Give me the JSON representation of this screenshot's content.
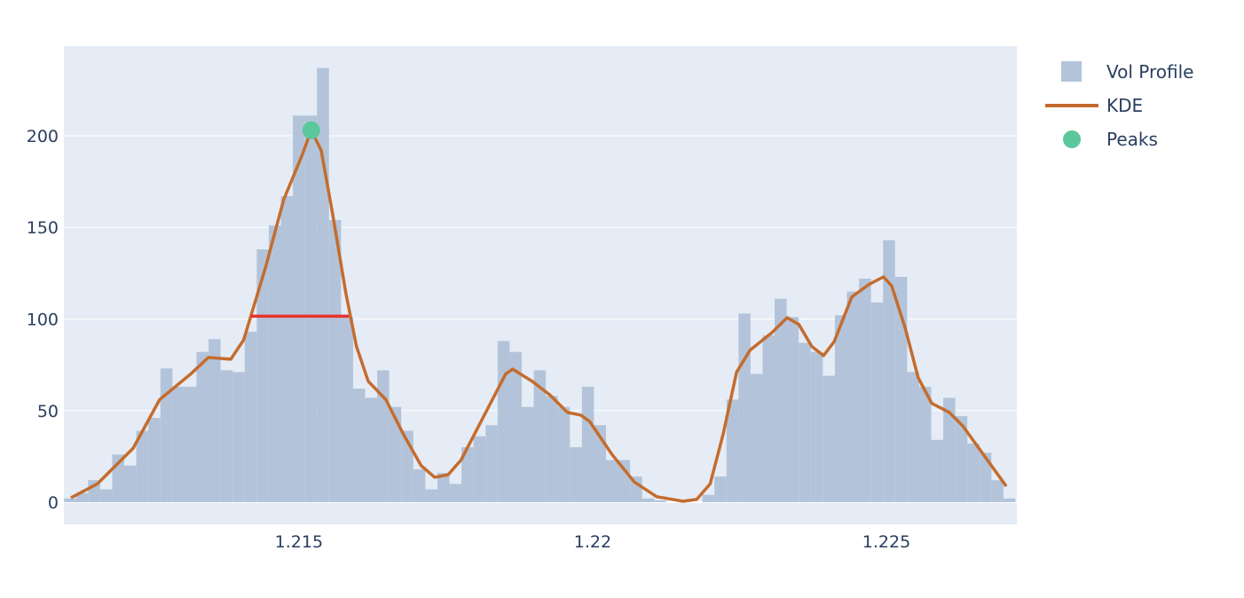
{
  "chart_data": {
    "type": "bar",
    "title": "",
    "xlabel": "",
    "ylabel": "",
    "xlim": [
      1.211,
      1.22722
    ],
    "ylim": [
      -12.1,
      248.9
    ],
    "grid": true,
    "legend_placement": "top-right",
    "x_ticks": [
      {
        "value": 1.215,
        "label": "1.215"
      },
      {
        "value": 1.22,
        "label": "1.22"
      },
      {
        "value": 1.225,
        "label": "1.225"
      }
    ],
    "y_ticks": [
      {
        "value": 0,
        "label": "0"
      },
      {
        "value": 50,
        "label": "50"
      },
      {
        "value": 100,
        "label": "100"
      },
      {
        "value": 150,
        "label": "150"
      },
      {
        "value": 200,
        "label": "200"
      }
    ],
    "series": [
      {
        "name": "Vol Profile",
        "type": "bar",
        "color": "#b3c4da",
        "bin_width": 0.000205,
        "x": [
          1.211105,
          1.21131,
          1.211515,
          1.21172,
          1.211925,
          1.21213,
          1.212335,
          1.21254,
          1.212745,
          1.21295,
          1.213155,
          1.21336,
          1.213565,
          1.21377,
          1.213975,
          1.21418,
          1.214385,
          1.21459,
          1.214795,
          1.215,
          1.215205,
          1.21541,
          1.215615,
          1.21582,
          1.216025,
          1.21623,
          1.216435,
          1.21664,
          1.216845,
          1.21705,
          1.217255,
          1.21746,
          1.217665,
          1.21787,
          1.218075,
          1.21828,
          1.218485,
          1.21869,
          1.218895,
          1.2191,
          1.219305,
          1.21951,
          1.219715,
          1.21992,
          1.220125,
          1.22033,
          1.220535,
          1.22074,
          1.220945,
          1.22115,
          1.221355,
          1.22156,
          1.221765,
          1.22197,
          1.222175,
          1.22238,
          1.222585,
          1.22279,
          1.222995,
          1.2232,
          1.223405,
          1.22361,
          1.223815,
          1.22402,
          1.224225,
          1.22443,
          1.224635,
          1.22484,
          1.225045,
          1.22525,
          1.225455,
          1.22566,
          1.225865,
          1.22607,
          1.226275,
          1.22648,
          1.226685,
          1.22689,
          1.227095
        ],
        "values": [
          2,
          5,
          12,
          7,
          26,
          20,
          39,
          46,
          73,
          63,
          63,
          82,
          89,
          72,
          71,
          93,
          138,
          151,
          167,
          211,
          211,
          237,
          154,
          101,
          62,
          57,
          72,
          52,
          39,
          18,
          7,
          16,
          10,
          30,
          36,
          42,
          88,
          82,
          52,
          72,
          58,
          52,
          30,
          63,
          42,
          23,
          23,
          14,
          2,
          1,
          0,
          1,
          0,
          4,
          14,
          56,
          103,
          70,
          91,
          111,
          101,
          87,
          82,
          69,
          102,
          115,
          122,
          109,
          143,
          123,
          71,
          63,
          34,
          57,
          47,
          32,
          27,
          12,
          2
        ]
      },
      {
        "name": "KDE",
        "type": "line",
        "color": "#c46c2e",
        "x": [
          1.21112,
          1.21157,
          1.21218,
          1.21263,
          1.21316,
          1.21346,
          1.21384,
          1.21406,
          1.21444,
          1.21474,
          1.21505,
          1.21521,
          1.21538,
          1.21557,
          1.2158,
          1.21598,
          1.21618,
          1.21648,
          1.21678,
          1.21708,
          1.21731,
          1.21754,
          1.21776,
          1.21814,
          1.21852,
          1.21864,
          1.21897,
          1.21927,
          1.21957,
          1.2198,
          1.21995,
          1.22033,
          1.22071,
          1.22109,
          1.22154,
          1.22177,
          1.222,
          1.22222,
          1.22245,
          1.22268,
          1.22305,
          1.22331,
          1.22351,
          1.22373,
          1.22393,
          1.22411,
          1.22441,
          1.22471,
          1.22495,
          1.22509,
          1.22532,
          1.22554,
          1.22577,
          1.22607,
          1.2263,
          1.22704
        ],
        "values": [
          2.4,
          10,
          29.5,
          56,
          70,
          79,
          78,
          88.6,
          129,
          165,
          189,
          203,
          192,
          158,
          114,
          85,
          66,
          56,
          37,
          20,
          13.6,
          15,
          23,
          46.5,
          70,
          72.6,
          66,
          58.6,
          49,
          47.5,
          44,
          26,
          11,
          3,
          0.5,
          1.5,
          10,
          37,
          71,
          83,
          92.5,
          100.7,
          97,
          85,
          80,
          87.6,
          112,
          119,
          123,
          118,
          95,
          68,
          54,
          49,
          41.6,
          8.7
        ]
      },
      {
        "name": "Peaks",
        "type": "scatter",
        "color": "#5ac89a",
        "x": [
          1.21521
        ],
        "values": [
          203
        ]
      },
      {
        "type": "line",
        "color": "#e8322e",
        "x": [
          1.21418,
          1.21585
        ],
        "values": [
          101.5,
          101.5
        ]
      }
    ]
  },
  "legend": {
    "items": [
      {
        "label": "Vol Profile",
        "symbol": "square",
        "color": "#b3c4da"
      },
      {
        "label": "KDE",
        "symbol": "line",
        "color": "#c46c2e"
      },
      {
        "label": "Peaks",
        "symbol": "circle",
        "color": "#5ac89a"
      }
    ]
  },
  "colors": {
    "plot_background": "#e5ecf6",
    "gridline": "#ffffff",
    "text": "#2a3f5f"
  }
}
